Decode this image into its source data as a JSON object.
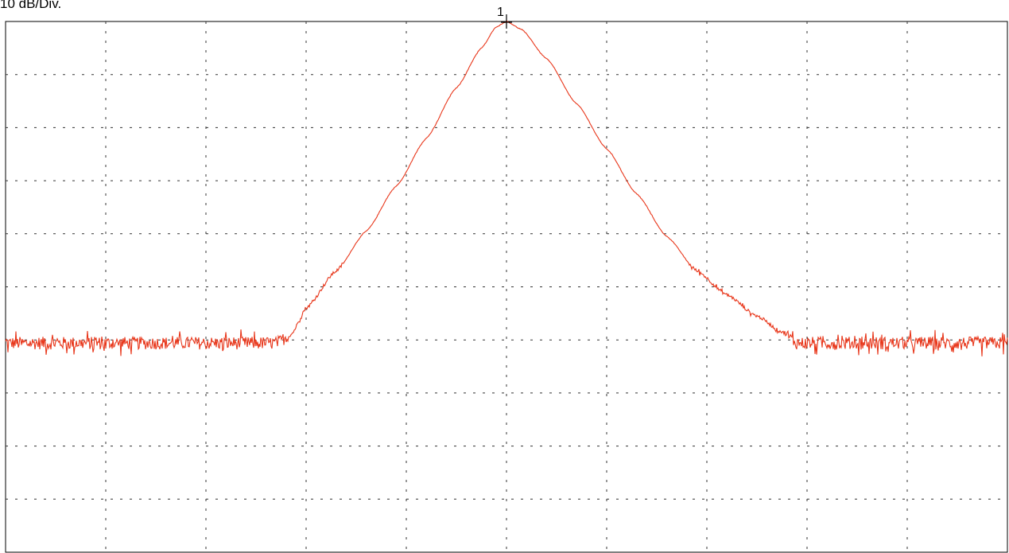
{
  "chart_data": {
    "type": "line",
    "title": "",
    "scale_label": "10 dB/Div.",
    "xlabel": "",
    "ylabel": "",
    "x_divisions": 10,
    "y_divisions": 10,
    "xlim": [
      0,
      10
    ],
    "ylim": [
      0,
      10
    ],
    "grid": true,
    "grid_style": "dotted",
    "series": [
      {
        "color": "#e8361a",
        "noise_floor_level": 3.94,
        "noise_amplitude": 0.12,
        "peak": {
          "x": 5.0,
          "y": 10.0
        },
        "points": [
          [
            0.0,
            3.94
          ],
          [
            2.7,
            3.94
          ],
          [
            2.85,
            4.1
          ],
          [
            3.0,
            4.6
          ],
          [
            3.3,
            5.3
          ],
          [
            3.6,
            6.05
          ],
          [
            3.9,
            6.9
          ],
          [
            4.2,
            7.8
          ],
          [
            4.5,
            8.75
          ],
          [
            4.75,
            9.5
          ],
          [
            4.9,
            9.9
          ],
          [
            5.0,
            10.0
          ],
          [
            5.15,
            9.85
          ],
          [
            5.4,
            9.3
          ],
          [
            5.7,
            8.45
          ],
          [
            6.0,
            7.6
          ],
          [
            6.3,
            6.75
          ],
          [
            6.6,
            5.95
          ],
          [
            6.9,
            5.3
          ],
          [
            7.2,
            4.85
          ],
          [
            7.5,
            4.45
          ],
          [
            7.75,
            4.15
          ],
          [
            7.9,
            3.94
          ],
          [
            10.0,
            3.94
          ]
        ]
      }
    ],
    "markers": [
      {
        "label": "1",
        "x": 5.0,
        "y": 10.0
      }
    ]
  }
}
